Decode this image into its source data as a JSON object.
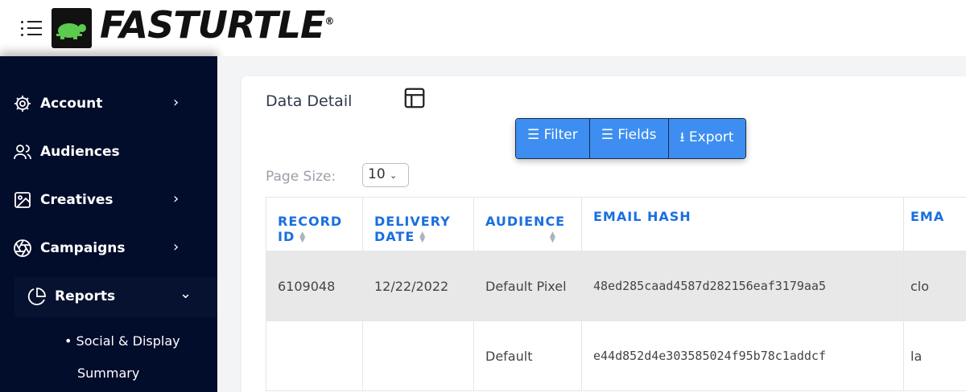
{
  "header": {
    "logo_text": "FASTURTLE",
    "logo_mark": "®",
    "menu_icon": "hamburger-list-icon",
    "logo_color": "#5cc94f"
  },
  "sidebar": {
    "items": [
      {
        "label": "Account",
        "icon": "gear-icon",
        "chevron": "›"
      },
      {
        "label": "Audiences",
        "icon": "users-icon",
        "chevron": ""
      },
      {
        "label": "Creatives",
        "icon": "image-icon",
        "chevron": "›"
      },
      {
        "label": "Campaigns",
        "icon": "aperture-icon",
        "chevron": "›"
      },
      {
        "label": "Reports",
        "icon": "pie-chart-icon",
        "chevron": "⌄"
      }
    ],
    "subitems": [
      "Social & Display",
      "Summary"
    ]
  },
  "main": {
    "title": "Data Detail",
    "buttons": {
      "filter": "Filter",
      "fields": "Fields",
      "export": "Export"
    },
    "page_size_label": "Page Size:",
    "page_size_value": "10",
    "accent": "#3d8ef0",
    "table": {
      "headers": [
        "RECORD ID",
        "DELIVERY DATE",
        "AUDIENCE",
        "EMAIL HASH",
        "EMA"
      ],
      "rows": [
        [
          "6109048",
          "12/22/2022",
          "Default Pixel",
          "48ed285caad4587d282156eaf3179aa5",
          "clo"
        ],
        [
          "",
          "",
          "Default",
          "e44d852d4e303585024f95b78c1addcf",
          "la"
        ]
      ]
    }
  }
}
